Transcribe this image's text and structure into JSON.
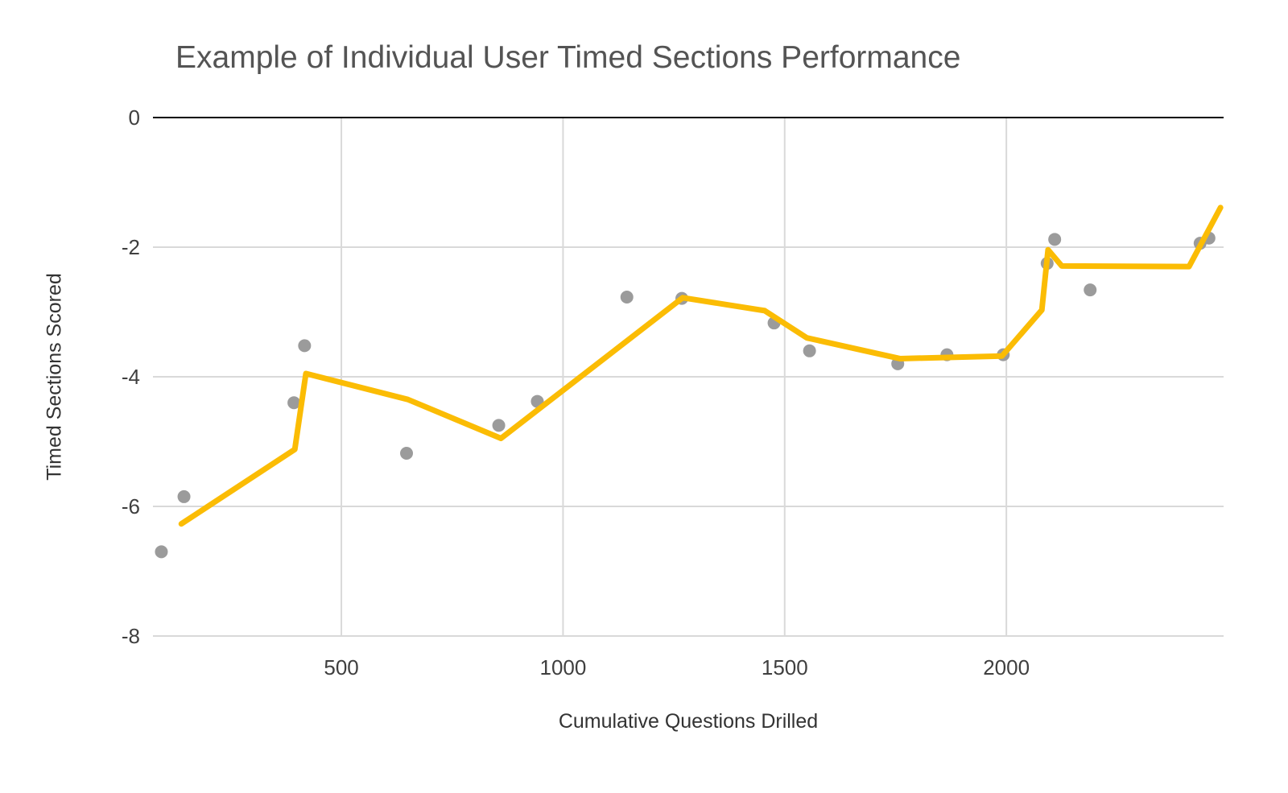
{
  "chart_data": {
    "type": "scatter",
    "title": "Example of Individual User Timed Sections Performance",
    "xlabel": "Cumulative Questions Drilled",
    "ylabel": "Timed Sections Scored",
    "xlim": [
      75,
      2490
    ],
    "ylim": [
      -8,
      0
    ],
    "x_ticks": [
      500,
      1000,
      1500,
      2000
    ],
    "y_ticks": [
      0,
      -2,
      -4,
      -6,
      -8
    ],
    "grid": true,
    "legend": "none",
    "colors": {
      "trend_line": "#FBBC04",
      "scatter": "#9b9b9b",
      "gridline": "#d9d9d9",
      "axis_line": "#000000"
    },
    "series": [
      {
        "name": "Timed Sections Scored",
        "type": "scatter",
        "color": "#9b9b9b",
        "points": [
          [
            94,
            -6.7
          ],
          [
            145,
            -5.85
          ],
          [
            393,
            -4.4
          ],
          [
            417,
            -3.52
          ],
          [
            647,
            -5.18
          ],
          [
            855,
            -4.75
          ],
          [
            942,
            -4.38
          ],
          [
            1144,
            -2.77
          ],
          [
            1268,
            -2.79
          ],
          [
            1476,
            -3.17
          ],
          [
            1556,
            -3.6
          ],
          [
            1755,
            -3.8
          ],
          [
            1866,
            -3.66
          ],
          [
            1993,
            -3.66
          ],
          [
            2092,
            -2.25
          ],
          [
            2109,
            -1.88
          ],
          [
            2189,
            -2.66
          ],
          [
            2437,
            -1.94
          ],
          [
            2457,
            -1.86
          ]
        ]
      },
      {
        "name": "Trend",
        "type": "line",
        "color": "#FBBC04",
        "points": [
          [
            139,
            -6.27
          ],
          [
            395,
            -5.12
          ],
          [
            420,
            -3.95
          ],
          [
            650,
            -4.35
          ],
          [
            860,
            -4.95
          ],
          [
            1270,
            -2.78
          ],
          [
            1455,
            -2.98
          ],
          [
            1550,
            -3.4
          ],
          [
            1760,
            -3.72
          ],
          [
            1990,
            -3.68
          ],
          [
            2080,
            -2.97
          ],
          [
            2094,
            -2.04
          ],
          [
            2125,
            -2.29
          ],
          [
            2412,
            -2.3
          ],
          [
            2483,
            -1.39
          ]
        ]
      }
    ]
  }
}
